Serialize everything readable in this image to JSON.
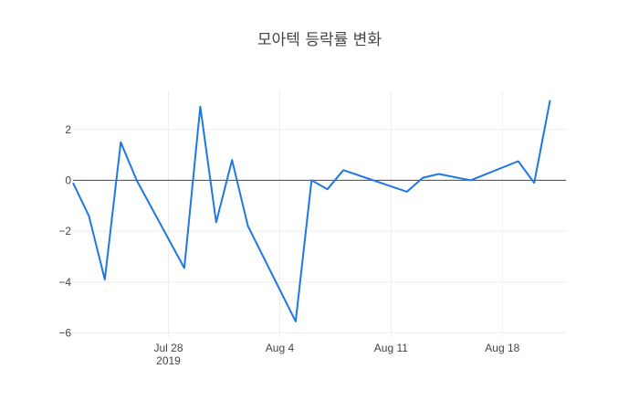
{
  "chart_data": {
    "type": "line",
    "title": "모아텍 등락률 변화",
    "xlabel": "",
    "ylabel": "",
    "x_axis_type": "date",
    "xlim": [
      "2019-07-22",
      "2019-08-22"
    ],
    "ylim": [
      -6.2,
      3.5
    ],
    "grid": true,
    "legend": false,
    "x_ticks": [
      {
        "date": "2019-07-28",
        "label": "Jul 28",
        "sublabel": "2019"
      },
      {
        "date": "2019-08-04",
        "label": "Aug 4",
        "sublabel": ""
      },
      {
        "date": "2019-08-11",
        "label": "Aug 11",
        "sublabel": ""
      },
      {
        "date": "2019-08-18",
        "label": "Aug 18",
        "sublabel": ""
      }
    ],
    "y_ticks": [
      {
        "value": 2,
        "label": "2"
      },
      {
        "value": 0,
        "label": "0"
      },
      {
        "value": -2,
        "label": "−2"
      },
      {
        "value": -4,
        "label": "−4"
      },
      {
        "value": -6,
        "label": "−6"
      }
    ],
    "series": [
      {
        "color": "#1f77e4",
        "x": [
          "2019-07-22",
          "2019-07-23",
          "2019-07-24",
          "2019-07-25",
          "2019-07-26",
          "2019-07-29",
          "2019-07-30",
          "2019-07-31",
          "2019-08-01",
          "2019-08-02",
          "2019-08-05",
          "2019-08-06",
          "2019-08-07",
          "2019-08-08",
          "2019-08-12",
          "2019-08-13",
          "2019-08-14",
          "2019-08-16",
          "2019-08-19",
          "2019-08-20",
          "2019-08-21"
        ],
        "y": [
          -0.1,
          -1.4,
          -3.9,
          1.5,
          0.0,
          -3.45,
          2.9,
          -1.65,
          0.8,
          -1.8,
          -5.55,
          0.0,
          -0.35,
          0.4,
          -0.45,
          0.1,
          0.25,
          0.0,
          0.75,
          -0.1,
          3.15
        ]
      }
    ]
  }
}
